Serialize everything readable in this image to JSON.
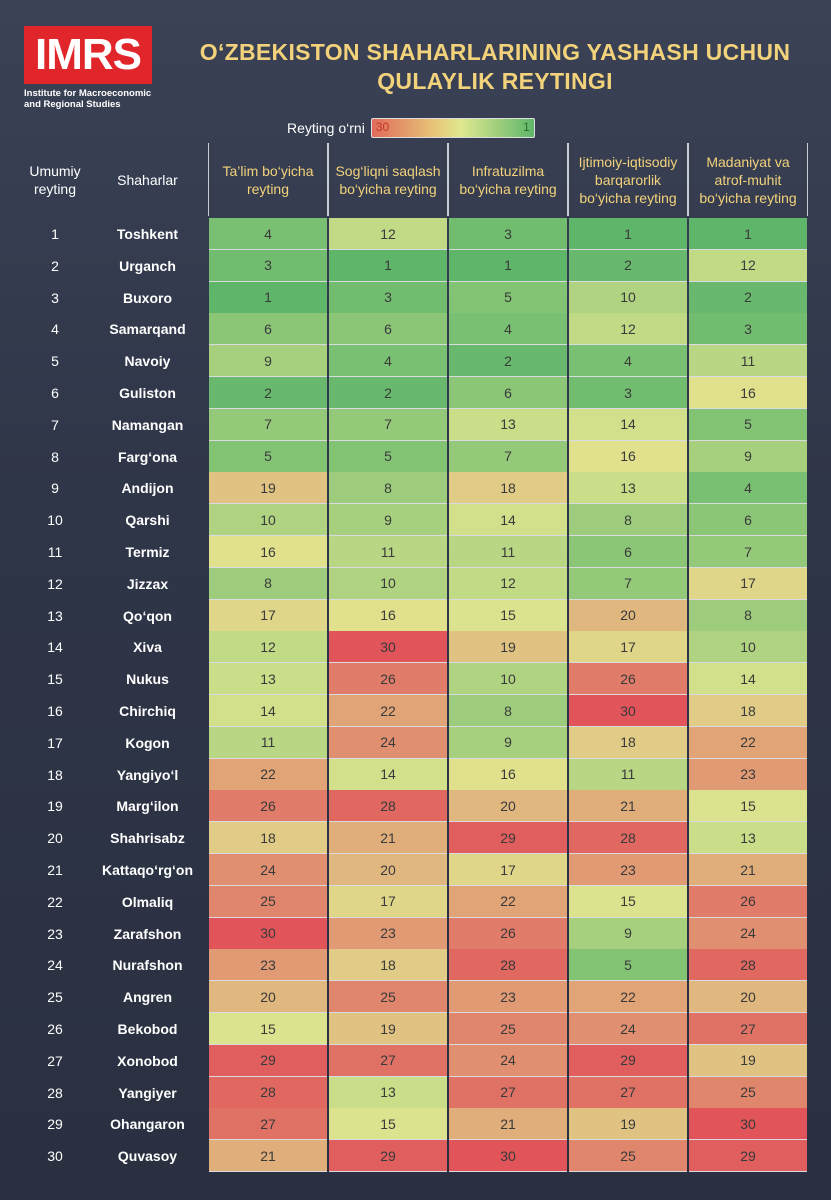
{
  "logo": {
    "text": "IMRS",
    "subtitle_line1": "Institute for Macroeconomic",
    "subtitle_line2": "and Regional Studies"
  },
  "title_line1": "O‘ZBEKISTON SHAHARLARINING YASHASH UCHUN",
  "title_line2": "QULAYLIK REYTINGI",
  "legend": {
    "label": "Reyting o‘rni",
    "low": "30",
    "high": "1"
  },
  "headers": {
    "rank": "Umumiy reyting",
    "city": "Shaharlar",
    "columns": [
      "Ta’lim bo‘yicha reyting",
      "Sog‘liqni saqlash bo‘yicha reyting",
      "Infratuzilma bo‘yicha reyting",
      "Ijtimoiy-iqtisodiy barqarorlik bo‘yicha reyting",
      "Madaniyat va atrof-muhit bo‘yicha reyting"
    ]
  },
  "colors": {
    "best": "#5fb66a",
    "middle": "#e0e58f",
    "worst": "#e0545a"
  },
  "chart_data": {
    "type": "heatmap",
    "title": "O‘ZBEKISTON SHAHARLARINING YASHASH UCHUN QULAYLIK REYTINGI",
    "columns": [
      "Ta’lim bo‘yicha reyting",
      "Sog‘liqni saqlash bo‘yicha reyting",
      "Infratuzilma bo‘yicha reyting",
      "Ijtimoiy-iqtisodiy barqarorlik bo‘yicha reyting",
      "Madaniyat va atrof-muhit bo‘yicha reyting"
    ],
    "scale": [
      1,
      30
    ],
    "rows": [
      {
        "rank": 1,
        "city": "Toshkent",
        "values": [
          4,
          12,
          3,
          1,
          1
        ]
      },
      {
        "rank": 2,
        "city": "Urganch",
        "values": [
          3,
          1,
          1,
          2,
          12
        ]
      },
      {
        "rank": 3,
        "city": "Buxoro",
        "values": [
          1,
          3,
          5,
          10,
          2
        ]
      },
      {
        "rank": 4,
        "city": "Samarqand",
        "values": [
          6,
          6,
          4,
          12,
          3
        ]
      },
      {
        "rank": 5,
        "city": "Navoiy",
        "values": [
          9,
          4,
          2,
          4,
          11
        ]
      },
      {
        "rank": 6,
        "city": "Guliston",
        "values": [
          2,
          2,
          6,
          3,
          16
        ]
      },
      {
        "rank": 7,
        "city": "Namangan",
        "values": [
          7,
          7,
          13,
          14,
          5
        ]
      },
      {
        "rank": 8,
        "city": "Farg‘ona",
        "values": [
          5,
          5,
          7,
          16,
          9
        ]
      },
      {
        "rank": 9,
        "city": "Andijon",
        "values": [
          19,
          8,
          18,
          13,
          4
        ]
      },
      {
        "rank": 10,
        "city": "Qarshi",
        "values": [
          10,
          9,
          14,
          8,
          6
        ]
      },
      {
        "rank": 11,
        "city": "Termiz",
        "values": [
          16,
          11,
          11,
          6,
          7
        ]
      },
      {
        "rank": 12,
        "city": "Jizzax",
        "values": [
          8,
          10,
          12,
          7,
          17
        ]
      },
      {
        "rank": 13,
        "city": "Qo‘qon",
        "values": [
          17,
          16,
          15,
          20,
          8
        ]
      },
      {
        "rank": 14,
        "city": "Xiva",
        "values": [
          12,
          30,
          19,
          17,
          10
        ]
      },
      {
        "rank": 15,
        "city": "Nukus",
        "values": [
          13,
          26,
          10,
          26,
          14
        ]
      },
      {
        "rank": 16,
        "city": "Chirchiq",
        "values": [
          14,
          22,
          8,
          30,
          18
        ]
      },
      {
        "rank": 17,
        "city": "Kogon",
        "values": [
          11,
          24,
          9,
          18,
          22
        ]
      },
      {
        "rank": 18,
        "city": "Yangiyo‘l",
        "values": [
          22,
          14,
          16,
          11,
          23
        ]
      },
      {
        "rank": 19,
        "city": "Marg‘ilon",
        "values": [
          26,
          28,
          20,
          21,
          15
        ]
      },
      {
        "rank": 20,
        "city": "Shahrisabz",
        "values": [
          18,
          21,
          29,
          28,
          13
        ]
      },
      {
        "rank": 21,
        "city": "Kattaqo‘rg‘on",
        "values": [
          24,
          20,
          17,
          23,
          21
        ]
      },
      {
        "rank": 22,
        "city": "Olmaliq",
        "values": [
          25,
          17,
          22,
          15,
          26
        ]
      },
      {
        "rank": 23,
        "city": "Zarafshon",
        "values": [
          30,
          23,
          26,
          9,
          24
        ]
      },
      {
        "rank": 24,
        "city": "Nurafshon",
        "values": [
          23,
          18,
          28,
          5,
          28
        ]
      },
      {
        "rank": 25,
        "city": "Angren",
        "values": [
          20,
          25,
          23,
          22,
          20
        ]
      },
      {
        "rank": 26,
        "city": "Bekobod",
        "values": [
          15,
          19,
          25,
          24,
          27
        ]
      },
      {
        "rank": 27,
        "city": "Xonobod",
        "values": [
          29,
          27,
          24,
          29,
          19
        ]
      },
      {
        "rank": 28,
        "city": "Yangiyer",
        "values": [
          28,
          13,
          27,
          27,
          25
        ]
      },
      {
        "rank": 29,
        "city": "Ohangaron",
        "values": [
          27,
          15,
          21,
          19,
          30
        ]
      },
      {
        "rank": 30,
        "city": "Quvasoy",
        "values": [
          21,
          29,
          30,
          25,
          29
        ]
      }
    ]
  }
}
